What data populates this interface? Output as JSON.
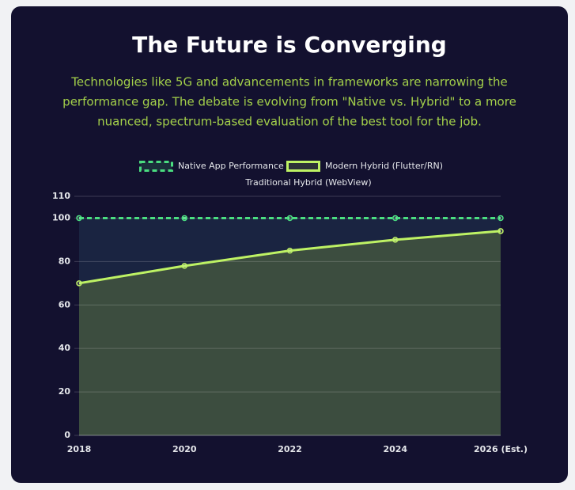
{
  "chart_data": {
    "type": "line",
    "title": "The Future is Converging",
    "subtitle": [
      "Technologies like 5G and advancements in frameworks are narrowing the",
      "performance gap. The debate is evolving from \"Native vs. Hybrid\" to a more",
      "nuanced, spectrum-based evaluation of the best tool for the job."
    ],
    "categories": [
      "2018",
      "2020",
      "2022",
      "2024",
      "2026 (Est.)"
    ],
    "series": [
      {
        "name": "Native App Performance",
        "color": "#4ade80",
        "values": [
          100,
          100,
          100,
          100,
          100
        ]
      },
      {
        "name": "Modern Hybrid (Flutter/RN)",
        "color": "#bef264",
        "values": [
          70,
          78,
          85,
          90,
          94
        ]
      },
      {
        "name": "Traditional Hybrid (WebView)",
        "color": "#13112f",
        "values": [
          null,
          null,
          null,
          null,
          null
        ]
      }
    ],
    "ylim": [
      0,
      110
    ],
    "yticks": [
      0,
      20,
      40,
      60,
      80,
      100,
      110
    ],
    "grid": true,
    "legend": "top"
  }
}
